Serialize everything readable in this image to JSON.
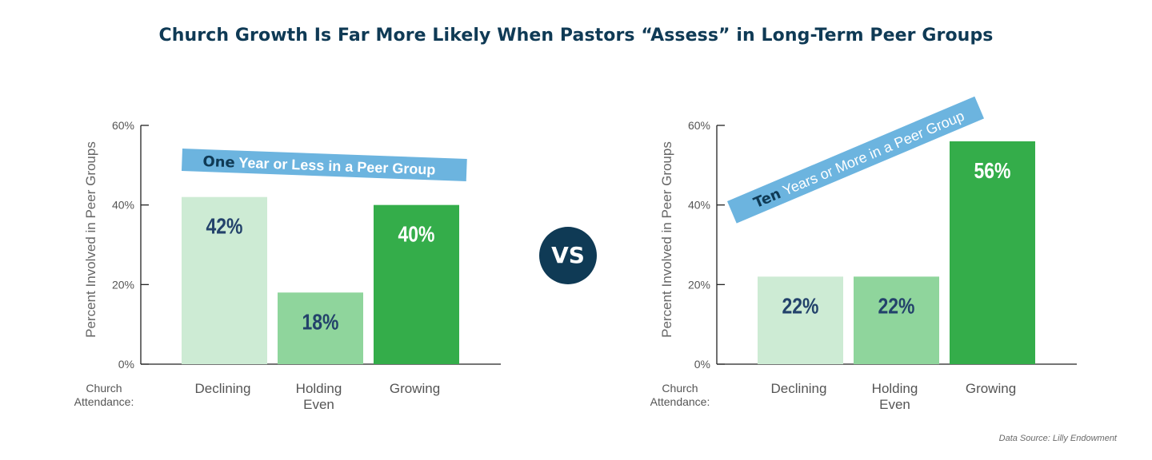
{
  "title": "Church Growth Is Far More Likely When Pastors “Assess” in Long-Term Peer Groups",
  "vs_label": "VS",
  "source": "Data Source: Lilly Endowment",
  "colors": {
    "declining": "#cdebd4",
    "holding": "#8fd59c",
    "growing": "#34ad4a",
    "banner": "#6cb4df",
    "dark": "#0f3a55",
    "label_dark": "#23426b",
    "white": "#ffffff",
    "axis": "#222222",
    "text_gray": "#555555"
  },
  "chart_data": [
    {
      "type": "bar",
      "banner": {
        "bold": "One",
        "rest": " Year or Less in a Peer Group"
      },
      "ylabel": "Percent Involved in Peer Groups",
      "xlabel": "Church Attendance:",
      "ylim": [
        0,
        60
      ],
      "yticks": [
        "0%",
        "20%",
        "40%",
        "60%"
      ],
      "categories": [
        [
          "Declining"
        ],
        [
          "Holding",
          "Even"
        ],
        [
          "Growing"
        ]
      ],
      "values": [
        42,
        18,
        40
      ],
      "labels": [
        "42%",
        "18%",
        "40%"
      ]
    },
    {
      "type": "bar",
      "banner": {
        "bold": "Ten",
        "rest": " Years or More in a Peer Group"
      },
      "ylabel": "Percent Involved in Peer Groups",
      "xlabel": "Church Attendance:",
      "ylim": [
        0,
        60
      ],
      "yticks": [
        "0%",
        "20%",
        "40%",
        "60%"
      ],
      "categories": [
        [
          "Declining"
        ],
        [
          "Holding",
          "Even"
        ],
        [
          "Growing"
        ]
      ],
      "values": [
        22,
        22,
        56
      ],
      "labels": [
        "22%",
        "22%",
        "56%"
      ]
    }
  ]
}
